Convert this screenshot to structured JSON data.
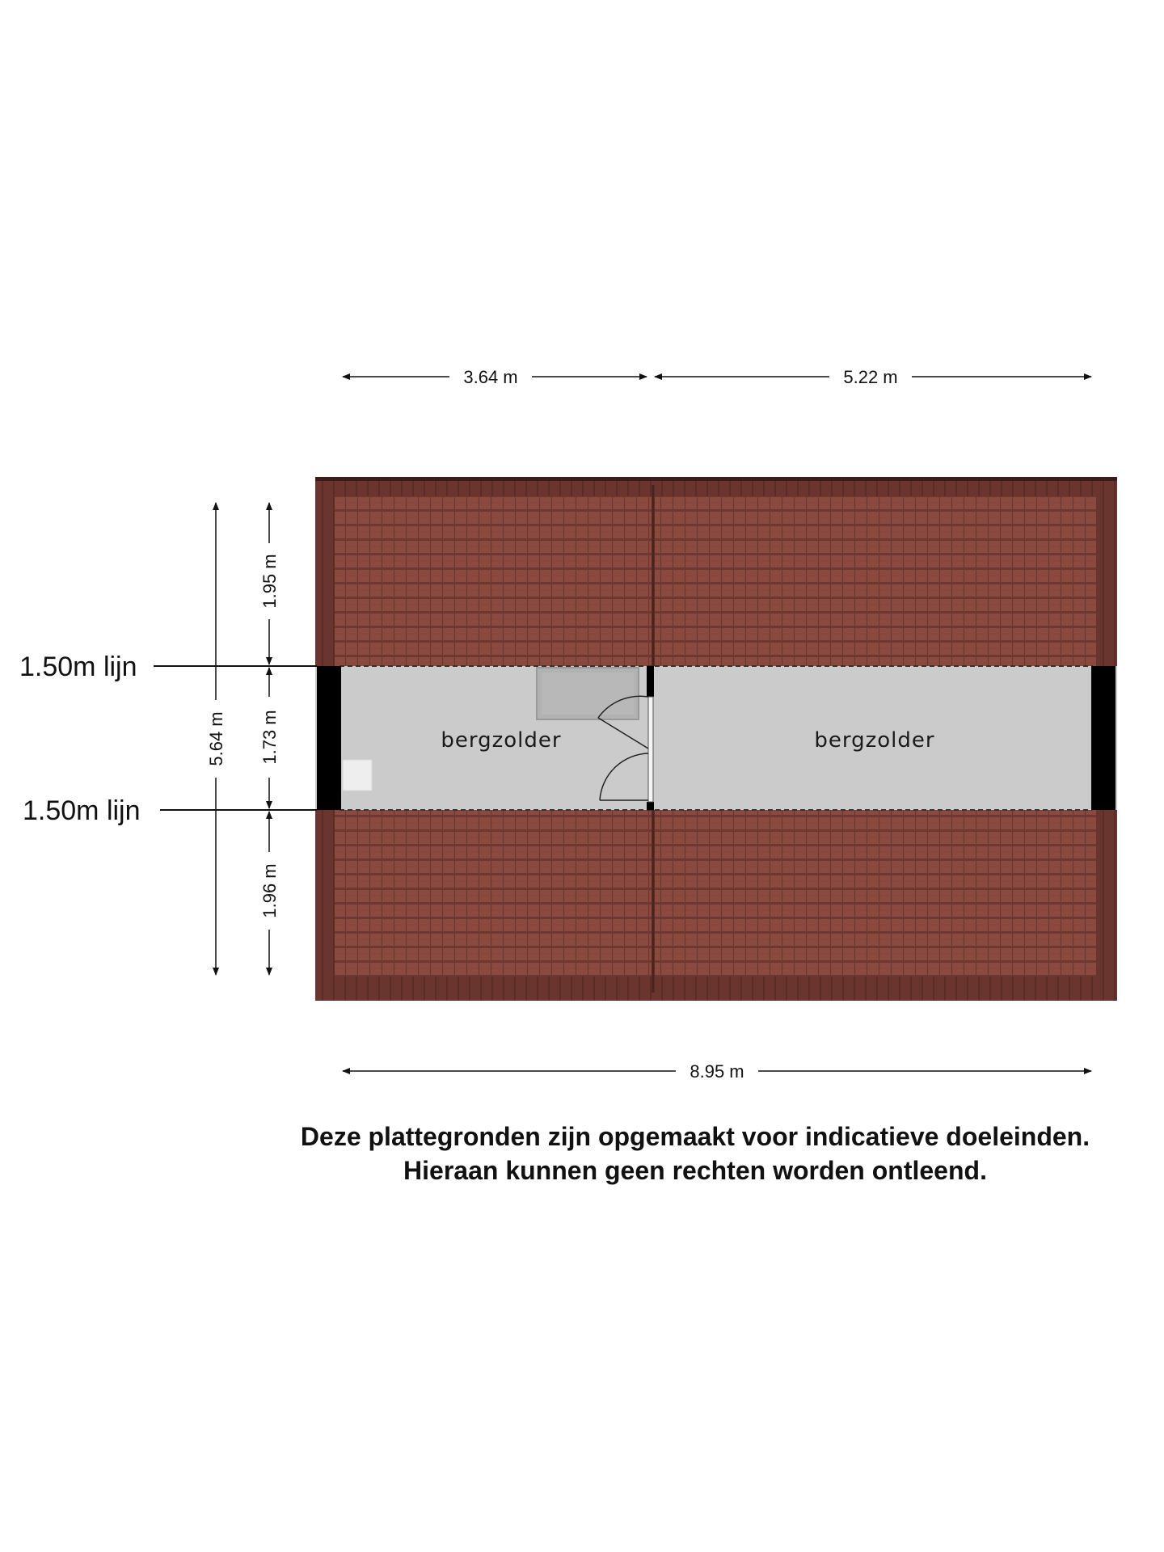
{
  "dimensions": {
    "top_left_width": "3.64 m",
    "top_right_width": "5.22 m",
    "bottom_total_width": "8.95 m",
    "total_depth": "5.64 m",
    "upper_roof_depth": "1.95 m",
    "middle_depth": "1.73 m",
    "lower_roof_depth": "1.96 m"
  },
  "height_lines": {
    "upper": "1.50m lijn",
    "lower": "1.50m lijn"
  },
  "rooms": {
    "left": "bergzolder",
    "right": "bergzolder"
  },
  "colors": {
    "roof_tile": "#8a4a3f",
    "roof_edge": "#5e2e27",
    "floor": "#cbcbcb",
    "wall": "#000000"
  },
  "disclaimer": {
    "line1": "Deze plattegronden zijn opgemaakt voor indicatieve doeleinden.",
    "line2": "Hieraan kunnen geen rechten worden ontleend."
  }
}
